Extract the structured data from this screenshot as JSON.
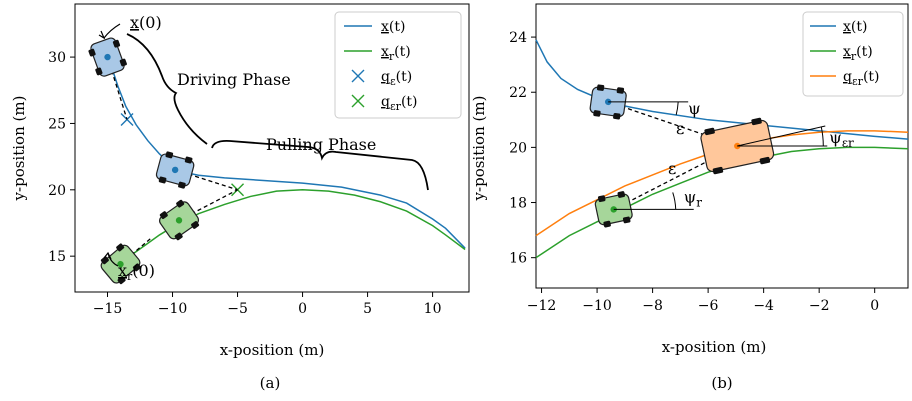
{
  "chart_data": [
    {
      "type": "line",
      "panel_caption": "(a)",
      "xlabel": "x-position (m)",
      "ylabel": "y-position (m)",
      "xlim": [
        -17.5,
        12.8
      ],
      "ylim": [
        12.3,
        34.0
      ],
      "xticks": [
        -15,
        -10,
        -5,
        0,
        5,
        10
      ],
      "yticks": [
        15,
        20,
        25,
        30
      ],
      "grid": false,
      "legend_position": "top-right",
      "series": [
        {
          "name": "x(t)",
          "color": "#1f77b4",
          "x": [
            -15.0,
            -14.6,
            -14.2,
            -13.6,
            -12.8,
            -11.9,
            -11.0,
            -10.0,
            -9.0,
            -8.0,
            -6.0,
            -3.0,
            0.0,
            3.0,
            6.0,
            8.0,
            10.0,
            11.0,
            12.5
          ],
          "y": [
            30.0,
            29.0,
            27.8,
            26.3,
            24.9,
            23.7,
            22.7,
            21.8,
            21.3,
            21.1,
            20.9,
            20.7,
            20.5,
            20.2,
            19.6,
            19.0,
            17.8,
            17.1,
            15.6
          ]
        },
        {
          "name": "x_r(t)",
          "color": "#2ca02c",
          "x": [
            -14.0,
            -13.0,
            -12.0,
            -11.0,
            -10.0,
            -9.0,
            -8.0,
            -6.0,
            -4.0,
            -2.0,
            0.0,
            2.0,
            4.0,
            6.0,
            8.0,
            10.0,
            11.0,
            12.5
          ],
          "y": [
            14.4,
            15.2,
            15.9,
            16.6,
            17.2,
            17.7,
            18.2,
            18.9,
            19.5,
            19.9,
            20.0,
            19.9,
            19.6,
            19.1,
            18.4,
            17.3,
            16.6,
            15.5
          ]
        }
      ],
      "markers": [
        {
          "name": "q_ε(t)",
          "color": "#1f77b4",
          "symbol": "x",
          "x": -13.5,
          "y": 25.3
        },
        {
          "name": "q_εr(t)",
          "color": "#2ca02c",
          "symbol": "x",
          "x": -5.0,
          "y": 20.0
        }
      ],
      "annotations": {
        "start_label": "x(0)",
        "start_r_label": "x_r(0)",
        "driving_phase": "Driving Phase",
        "pulling_phase": "Pulling Phase"
      }
    },
    {
      "type": "line",
      "panel_caption": "(b)",
      "xlabel": "x-position (m)",
      "ylabel": "y-position (m)",
      "xlim": [
        -12.2,
        1.2
      ],
      "ylim": [
        14.9,
        25.2
      ],
      "xticks": [
        -12,
        -10,
        -8,
        -6,
        -4,
        -2,
        0
      ],
      "yticks": [
        16,
        18,
        20,
        22,
        24
      ],
      "grid": false,
      "legend_position": "top-right",
      "series": [
        {
          "name": "x(t)",
          "color": "#1f77b4",
          "x": [
            -12.2,
            -11.8,
            -11.3,
            -10.7,
            -10.0,
            -9.0,
            -8.0,
            -6.0,
            -4.0,
            -2.0,
            0.0,
            1.2
          ],
          "y": [
            23.9,
            23.1,
            22.5,
            22.1,
            21.8,
            21.5,
            21.3,
            21.0,
            20.8,
            20.6,
            20.4,
            20.3
          ]
        },
        {
          "name": "x_r(t)",
          "color": "#2ca02c",
          "x": [
            -12.2,
            -11.0,
            -10.0,
            -9.0,
            -8.0,
            -7.0,
            -6.0,
            -5.0,
            -4.0,
            -3.0,
            -2.0,
            -1.0,
            0.0,
            1.2
          ],
          "y": [
            16.0,
            16.8,
            17.3,
            17.8,
            18.3,
            18.7,
            19.1,
            19.4,
            19.65,
            19.85,
            19.95,
            20.0,
            20.0,
            19.95
          ]
        },
        {
          "name": "q_εr(t)",
          "color": "#ff7f0e",
          "x": [
            -12.2,
            -11.0,
            -10.0,
            -9.0,
            -8.0,
            -7.0,
            -6.0,
            -5.0,
            -4.0,
            -3.0,
            -2.0,
            -1.0,
            0.0,
            1.2
          ],
          "y": [
            16.8,
            17.6,
            18.1,
            18.6,
            19.0,
            19.4,
            19.75,
            20.05,
            20.3,
            20.45,
            20.55,
            20.6,
            20.6,
            20.55
          ]
        }
      ],
      "annotations": {
        "psi": "ψ",
        "psi_r": "ψ_r",
        "psi_er": "ψ_εr",
        "epsilon_top": "ε",
        "epsilon_bottom": "ε"
      }
    }
  ],
  "legend_a": [
    {
      "label": "x(t)",
      "color": "#1f77b4",
      "symbol": "line"
    },
    {
      "label": "x_r(t)",
      "color": "#2ca02c",
      "symbol": "line"
    },
    {
      "label": "q_ε(t)",
      "color": "#1f77b4",
      "symbol": "x"
    },
    {
      "label": "q_εr(t)",
      "color": "#2ca02c",
      "symbol": "x"
    }
  ],
  "legend_b": [
    {
      "label": "x(t)",
      "color": "#1f77b4",
      "symbol": "line"
    },
    {
      "label": "x_r(t)",
      "color": "#2ca02c",
      "symbol": "line"
    },
    {
      "label": "q_εr(t)",
      "color": "#ff7f0e",
      "symbol": "line"
    }
  ],
  "colors": {
    "blue_fill": "#a9c8e6",
    "green_fill": "#a6d69a",
    "orange_fill": "#ffc79b"
  }
}
